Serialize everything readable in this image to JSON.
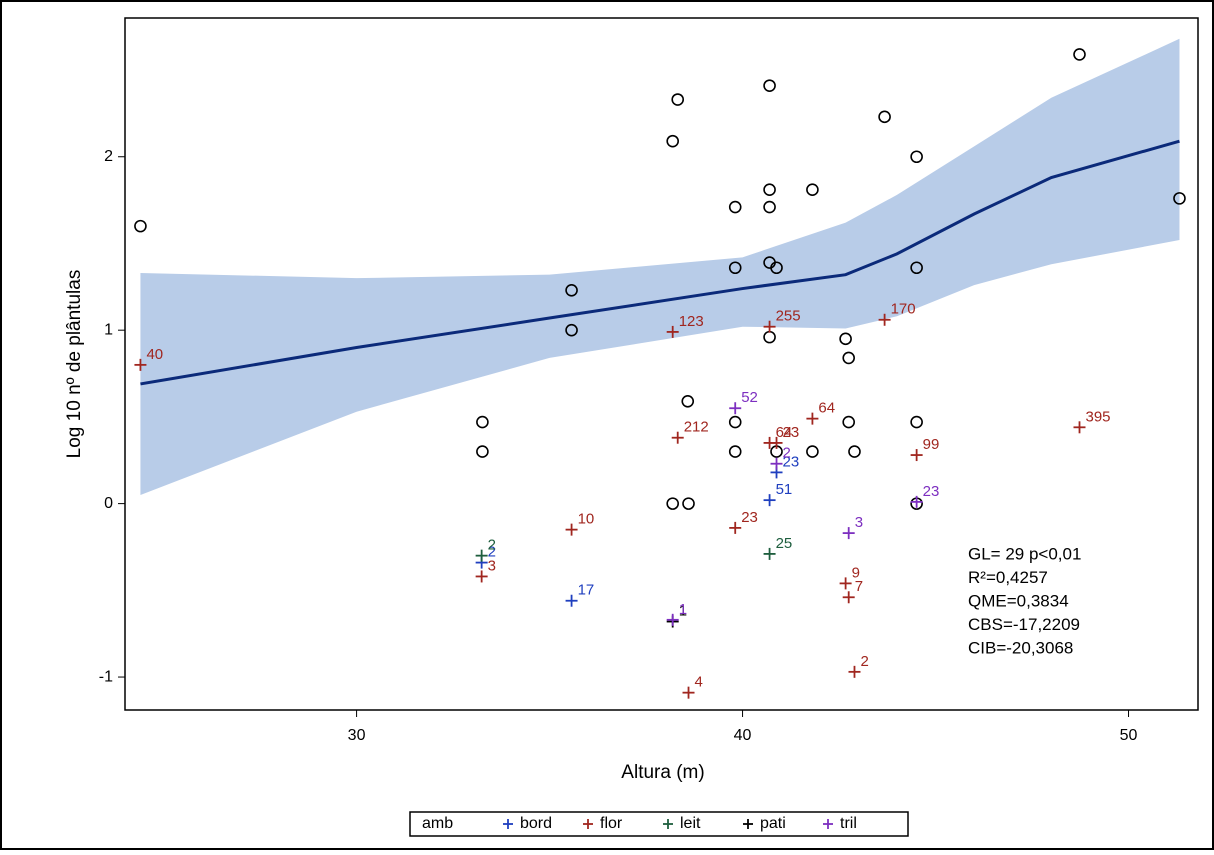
{
  "chart_data": {
    "type": "scatter",
    "x_label": "Altura (m)",
    "y_label": "Log 10 nº de plântulas",
    "xlim": [
      24,
      51.8
    ],
    "ylim": [
      -1.19,
      2.8
    ],
    "xticks": [
      30,
      40,
      50
    ],
    "yticks": [
      -1,
      0,
      1,
      2
    ],
    "fit": {
      "color": "#0b2a7a",
      "band_color": "#b8cce8",
      "x": [
        24.4,
        30,
        35,
        40,
        42.67,
        44,
        46,
        48,
        51.32
      ],
      "y": [
        0.69,
        0.9,
        1.07,
        1.24,
        1.32,
        1.44,
        1.67,
        1.88,
        2.09
      ],
      "upper": [
        1.33,
        1.3,
        1.32,
        1.42,
        1.62,
        1.78,
        2.06,
        2.34,
        2.68
      ],
      "lower": [
        0.05,
        0.53,
        0.84,
        1.02,
        1.01,
        1.08,
        1.26,
        1.38,
        1.52
      ]
    },
    "circles": {
      "color": "#000000",
      "x": [
        24.4,
        35.57,
        35.57,
        33.26,
        33.26,
        38.19,
        38.32,
        38.58,
        38.19,
        38.6,
        39.81,
        39.81,
        39.81,
        39.81,
        40.7,
        40.7,
        40.7,
        40.7,
        40.88,
        40.7,
        40.88,
        41.81,
        41.81,
        42.67,
        42.75,
        42.75,
        42.9,
        43.68,
        44.51,
        44.51,
        44.51,
        44.51,
        48.73,
        51.32
      ],
      "y": [
        1.6,
        1.23,
        1.0,
        0.47,
        0.3,
        2.09,
        2.33,
        0.59,
        0.0,
        0.0,
        1.71,
        1.36,
        0.47,
        0.3,
        2.41,
        1.81,
        1.71,
        1.39,
        1.36,
        0.96,
        0.3,
        1.81,
        0.3,
        0.95,
        0.84,
        0.47,
        0.3,
        2.23,
        2.0,
        1.36,
        0.47,
        0.0,
        2.59,
        1.76
      ]
    },
    "legend_title": "amb",
    "series": [
      {
        "name": "bord",
        "color": "#1f3fbf",
        "x": [
          40.7,
          40.88,
          35.57,
          33.24
        ],
        "y": [
          0.02,
          0.18,
          -0.56,
          -0.34
        ],
        "labels": [
          "51",
          "23",
          "17",
          "2"
        ]
      },
      {
        "name": "flor",
        "color": "#a0261f",
        "x": [
          24.4,
          38.19,
          40.7,
          43.68,
          38.32,
          40.7,
          40.88,
          41.81,
          44.51,
          48.73,
          35.57,
          39.81,
          33.24,
          42.67,
          42.75,
          42.9,
          38.6
        ],
        "y": [
          0.8,
          0.99,
          1.02,
          1.06,
          0.38,
          0.35,
          0.35,
          0.49,
          0.28,
          0.44,
          -0.15,
          -0.14,
          -0.42,
          -0.46,
          -0.54,
          -0.97,
          -1.09
        ],
        "labels": [
          "40",
          "123",
          "255",
          "170",
          "212",
          "64",
          "23",
          "64",
          "99",
          "395",
          "10",
          "23",
          "3",
          "9",
          "7",
          "2",
          "4"
        ]
      },
      {
        "name": "leit",
        "color": "#1e5e3e",
        "x": [
          33.24,
          40.7
        ],
        "y": [
          -0.3,
          -0.29
        ],
        "labels": [
          "2",
          "25"
        ]
      },
      {
        "name": "pati",
        "color": "#000000",
        "x": [
          38.19
        ],
        "y": [
          -0.68
        ],
        "labels": [
          "1"
        ]
      },
      {
        "name": "tril",
        "color": "#7d2fc0",
        "x": [
          39.81,
          40.88,
          44.51,
          42.75,
          38.19
        ],
        "y": [
          0.55,
          0.23,
          0.01,
          -0.17,
          -0.67
        ],
        "labels": [
          "52",
          "2",
          "23",
          "3",
          "1"
        ]
      }
    ],
    "annotations": [
      "GL= 29 p<0,01",
      "R²=0,4257",
      "QME=0,3834",
      "CBS=-17,2209",
      "CIB=-20,3068"
    ]
  }
}
